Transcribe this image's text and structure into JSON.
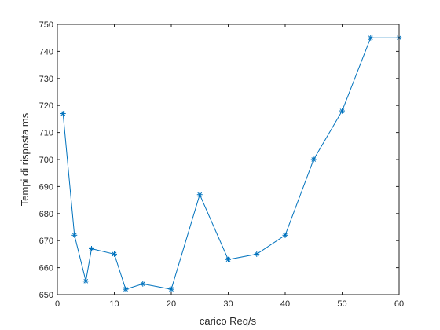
{
  "chart_data": {
    "type": "line",
    "title": "",
    "xlabel": "carico Req/s",
    "ylabel": "Tempi di risposta ms",
    "xlim": [
      0,
      60
    ],
    "ylim": [
      650,
      750
    ],
    "xticks": [
      0,
      10,
      20,
      30,
      40,
      50,
      60
    ],
    "yticks": [
      650,
      660,
      670,
      680,
      690,
      700,
      710,
      720,
      730,
      740,
      750
    ],
    "grid": false,
    "line_color": "#0072BD",
    "marker": "asterisk",
    "series": [
      {
        "x": [
          1,
          3,
          5,
          6,
          10,
          12,
          15,
          20,
          25,
          30,
          35,
          40,
          45,
          50,
          55,
          60
        ],
        "y": [
          717,
          672,
          655,
          667,
          665,
          652,
          654,
          652,
          687,
          663,
          665,
          672,
          700,
          718,
          745,
          745
        ]
      }
    ]
  }
}
